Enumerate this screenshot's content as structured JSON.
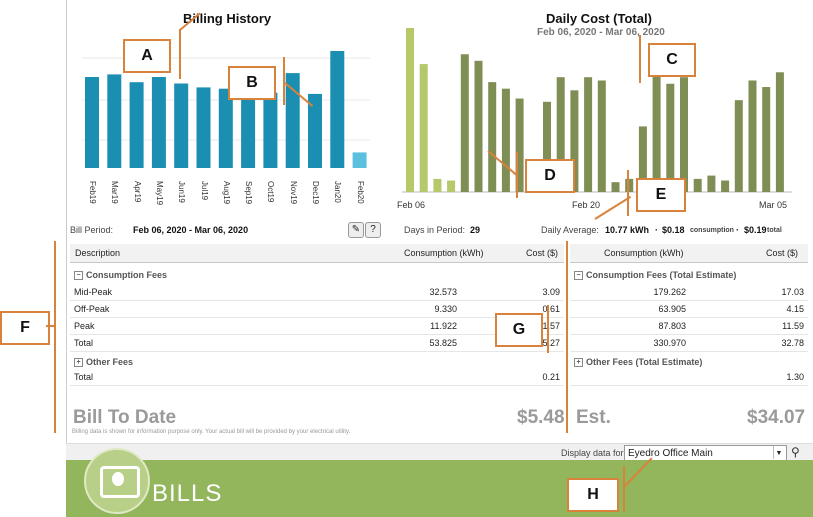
{
  "billing_history": {
    "title": "Billing History",
    "months": [
      "Feb19",
      "Mar19",
      "Apr19",
      "May19",
      "Jun19",
      "Jul19",
      "Aug19",
      "Sep19",
      "Oct19",
      "Nov19",
      "Dec19",
      "Jan20",
      "Feb20"
    ],
    "values": [
      0.7,
      0.72,
      0.66,
      0.7,
      0.65,
      0.62,
      0.61,
      0.58,
      0.58,
      0.73,
      0.57,
      0.9,
      0.12
    ],
    "colors": {
      "bar": "#1a8fb2",
      "current": "#5bc0de"
    }
  },
  "daily_cost": {
    "title": "Daily Cost (Total)",
    "subtitle": "Feb 06, 2020 - Mar 06, 2020",
    "x_labels": [
      "Feb 06",
      "Feb 20",
      "Mar 05"
    ],
    "values": [
      1.0,
      0.78,
      0.08,
      0.07,
      0.84,
      0.8,
      0.67,
      0.63,
      0.57,
      0.18,
      0.55,
      0.7,
      0.62,
      0.7,
      0.68,
      0.06,
      0.08,
      0.4,
      0.71,
      0.66,
      0.7,
      0.08,
      0.1,
      0.07,
      0.56,
      0.68,
      0.64,
      0.73
    ],
    "highlight_count": 4,
    "colors": {
      "light": "#b5c86a",
      "dark": "#7f8e55"
    }
  },
  "info": {
    "bill_period_label": "Bill Period:",
    "bill_period_value": "Feb 06, 2020 - Mar 06, 2020",
    "days_label": "Days in Period:",
    "days_value": "29",
    "daily_avg_label": "Daily Average:",
    "daily_avg_kwh": "10.77 kWh",
    "daily_avg_cons": "$0.18",
    "daily_avg_cons_label": "consumption",
    "daily_avg_total": "$0.19",
    "daily_avg_total_label": "total"
  },
  "left_table": {
    "headers": [
      "Description",
      "Consumption (kWh)",
      "Cost ($)"
    ],
    "section1": "Consumption Fees",
    "rows": [
      {
        "desc": "Mid-Peak",
        "kwh": "32.573",
        "cost": "3.09"
      },
      {
        "desc": "Off-Peak",
        "kwh": "9.330",
        "cost": "0.61"
      },
      {
        "desc": "Peak",
        "kwh": "11.922",
        "cost": "1.57"
      },
      {
        "desc": "Total",
        "kwh": "53.825",
        "cost": "5.27"
      }
    ],
    "section2": "Other Fees",
    "other_total": {
      "desc": "Total",
      "cost": "0.21"
    },
    "bill_to_date_label": "Bill To Date",
    "bill_to_date_value": "$5.48",
    "disclaimer": "Billing data is shown for information purpose only. Your actual bill will be provided by your electrical utility."
  },
  "right_table": {
    "headers": [
      "Consumption (kWh)",
      "Cost ($)"
    ],
    "section1": "Consumption Fees (Total Estimate)",
    "rows": [
      {
        "kwh": "179.262",
        "cost": "17.03"
      },
      {
        "kwh": "63.905",
        "cost": "4.15"
      },
      {
        "kwh": "87.803",
        "cost": "11.59"
      },
      {
        "kwh": "330.970",
        "cost": "32.78"
      }
    ],
    "section2": "Other Fees (Total Estimate)",
    "other_total": "1.30",
    "est_label": "Est.",
    "est_value": "$34.07"
  },
  "display": {
    "label": "Display data for:",
    "selected": "Eyedro Office Main"
  },
  "footer": {
    "title": "BILLS",
    "colors": {
      "band": "#93b55c"
    }
  },
  "callouts": [
    "A",
    "B",
    "C",
    "D",
    "E",
    "F",
    "G",
    "H"
  ],
  "icons": {
    "edit": "pencil-icon",
    "help": "help-icon",
    "search": "magnifier-icon",
    "bill": "bill-icon"
  }
}
